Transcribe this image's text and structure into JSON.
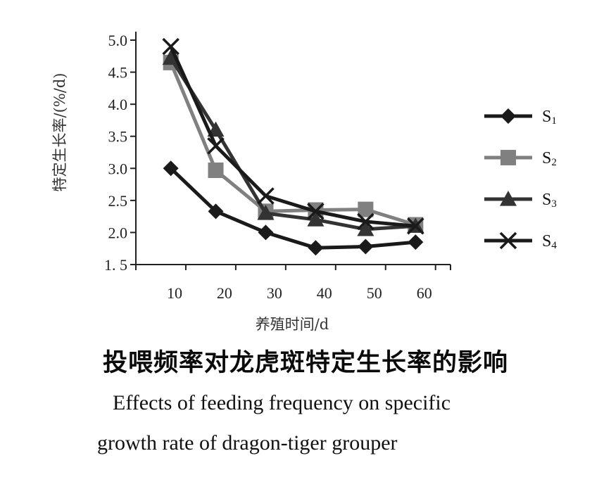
{
  "chart_data": {
    "type": "line",
    "x": [
      7,
      16,
      26,
      36,
      46,
      56
    ],
    "xticks": [
      "10",
      "20",
      "30",
      "40",
      "50",
      "60"
    ],
    "xtick_values": [
      10,
      20,
      30,
      40,
      50,
      60
    ],
    "xlim": [
      0,
      63
    ],
    "yticks": [
      "1. 5",
      "2.0",
      "2.5",
      "3.0",
      "3.5",
      "4.0",
      "4.5",
      "5.0"
    ],
    "ytick_values": [
      1.5,
      2.0,
      2.5,
      3.0,
      3.5,
      4.0,
      4.5,
      5.0
    ],
    "ylim": [
      1.5,
      5.0
    ],
    "xlabel": "养殖时间/d",
    "ylabel": "特定生长率/(%/d)",
    "legend_position": "right",
    "grid": false,
    "series": [
      {
        "name": "S",
        "sub": "1",
        "marker": "diamond",
        "color": "#1a1a1a",
        "values": [
          3.0,
          2.33,
          2.0,
          1.76,
          1.78,
          1.85
        ]
      },
      {
        "name": "S",
        "sub": "2",
        "marker": "square",
        "color": "#808080",
        "values": [
          4.65,
          2.97,
          2.33,
          2.35,
          2.36,
          2.12
        ]
      },
      {
        "name": "S",
        "sub": "3",
        "marker": "triangle",
        "color": "#333333",
        "values": [
          4.72,
          3.6,
          2.3,
          2.2,
          2.05,
          2.1
        ]
      },
      {
        "name": "S",
        "sub": "4",
        "marker": "cross",
        "color": "#1a1a1a",
        "values": [
          4.9,
          3.35,
          2.57,
          2.33,
          2.17,
          2.1
        ]
      }
    ]
  },
  "caption": {
    "chinese": "投喂频率对龙虎斑特定生长率的影响",
    "english_line1": "Effects of feeding frequency on specific",
    "english_line2": "growth rate of dragon-tiger grouper"
  }
}
